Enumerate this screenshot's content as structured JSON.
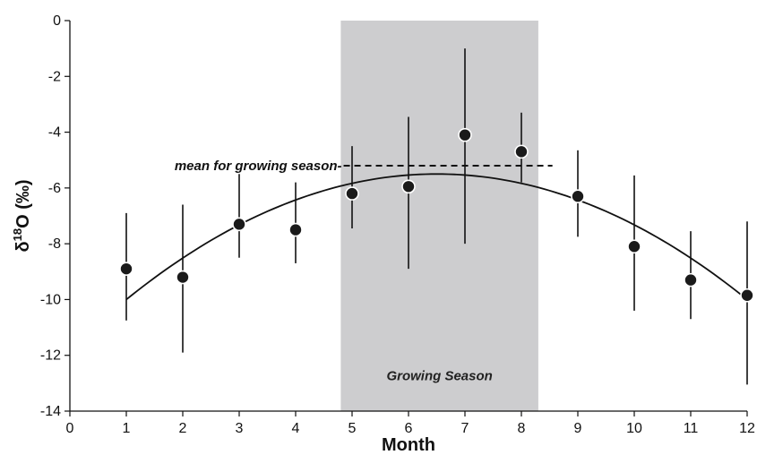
{
  "chart_data": {
    "type": "scatter",
    "title": "",
    "xlabel": "Month",
    "ylabel_main": "δ",
    "ylabel_sup": "18",
    "ylabel_rest": "O (‰)",
    "xlim": [
      0,
      12
    ],
    "ylim": [
      -14,
      0
    ],
    "x_ticks": [
      0,
      1,
      2,
      3,
      4,
      5,
      6,
      7,
      8,
      9,
      10,
      11,
      12
    ],
    "y_ticks": [
      0,
      -2,
      -4,
      -6,
      -8,
      -10,
      -12,
      -14
    ],
    "grid": false,
    "points": [
      {
        "x": 1,
        "y": -8.9,
        "err_low": -10.75,
        "err_high": -6.9
      },
      {
        "x": 2,
        "y": -9.2,
        "err_low": -11.9,
        "err_high": -6.6
      },
      {
        "x": 3,
        "y": -7.3,
        "err_low": -8.5,
        "err_high": -5.5
      },
      {
        "x": 4,
        "y": -7.5,
        "err_low": -8.7,
        "err_high": -5.8
      },
      {
        "x": 5,
        "y": -6.2,
        "err_low": -7.45,
        "err_high": -4.5
      },
      {
        "x": 6,
        "y": -5.95,
        "err_low": -8.9,
        "err_high": -3.45
      },
      {
        "x": 7,
        "y": -4.1,
        "err_low": -8.0,
        "err_high": -1.0
      },
      {
        "x": 8,
        "y": -4.7,
        "err_low": -5.8,
        "err_high": -3.3
      },
      {
        "x": 9,
        "y": -6.3,
        "err_low": -7.75,
        "err_high": -4.65
      },
      {
        "x": 10,
        "y": -8.1,
        "err_low": -10.4,
        "err_high": -5.55
      },
      {
        "x": 11,
        "y": -9.3,
        "err_low": -10.7,
        "err_high": -7.55
      },
      {
        "x": 12,
        "y": -9.85,
        "err_low": -13.05,
        "err_high": -7.2
      }
    ],
    "fit_curve": {
      "type": "quadratic",
      "vertex_x": 6.5,
      "vertex_y": -5.5,
      "x_start": 1,
      "x_end": 12,
      "y_at_start": -10.0
    },
    "growing_season": {
      "x_start": 4.8,
      "x_end": 8.3,
      "label": "Growing Season",
      "color": "#cdcdcf"
    },
    "season_mean": {
      "y": -5.2,
      "x_start": 4.85,
      "x_end": 8.55,
      "label": "mean for growing season-"
    },
    "colors": {
      "point_fill": "#1a1a1a",
      "point_stroke": "#ffffff",
      "line": "#111111"
    }
  }
}
